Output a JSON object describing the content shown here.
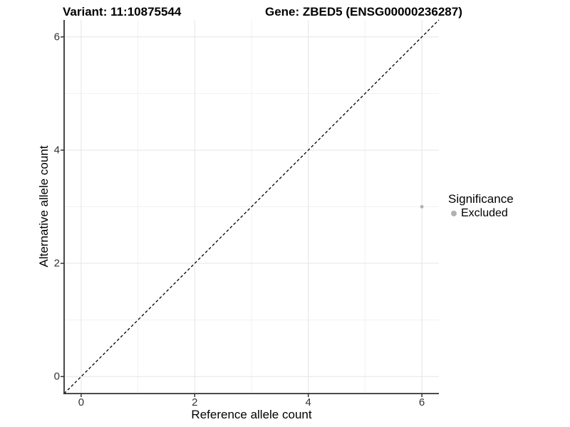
{
  "titles": {
    "variant": "Variant: 11:10875544",
    "gene": "Gene: ZBED5 (ENSG00000236287)"
  },
  "axes": {
    "x_label": "Reference allele count",
    "y_label": "Alternative allele count"
  },
  "legend": {
    "title": "Significance",
    "items": [
      {
        "label": "Excluded",
        "color": "#b1b1b1"
      }
    ]
  },
  "colors": {
    "axis_line": "#333333",
    "tick_mark": "#333333",
    "tick_text": "#333333",
    "grid_major": "#e4e4e4",
    "grid_minor": "#f1f1f1",
    "identity_line": "#000000",
    "point": "#b1b1b1",
    "background": "#ffffff"
  },
  "chart_data": {
    "type": "scatter",
    "title_left": "Variant: 11:10875544",
    "title_right": "Gene: ZBED5 (ENSG00000236287)",
    "xlabel": "Reference allele count",
    "ylabel": "Alternative allele count",
    "x_range": [
      -0.3,
      6.3
    ],
    "y_range": [
      -0.3,
      6.3
    ],
    "x_ticks": [
      0,
      2,
      4,
      6
    ],
    "y_ticks": [
      0,
      2,
      4,
      6
    ],
    "x_minor_gridlines": [
      1,
      3,
      5
    ],
    "y_minor_gridlines": [
      1,
      3,
      5
    ],
    "grid": true,
    "legend_position": "right",
    "series": [
      {
        "name": "Excluded",
        "color": "#b1b1b1",
        "points": [
          {
            "x": 6,
            "y": 3
          }
        ]
      }
    ],
    "reference_line": {
      "type": "identity",
      "from": [
        -0.3,
        -0.3
      ],
      "to": [
        6.3,
        6.3
      ],
      "style": "dashed",
      "color": "#000000"
    }
  }
}
